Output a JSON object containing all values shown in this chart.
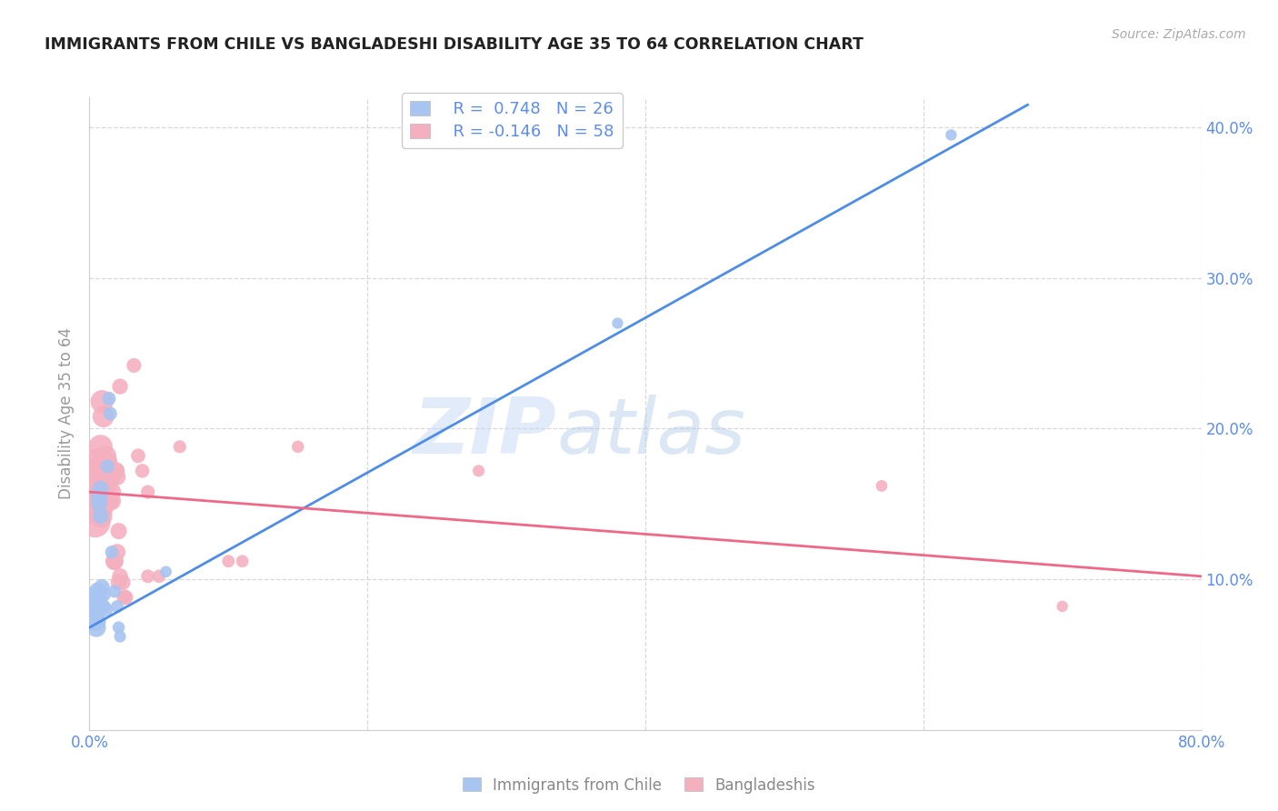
{
  "title": "IMMIGRANTS FROM CHILE VS BANGLADESHI DISABILITY AGE 35 TO 64 CORRELATION CHART",
  "source": "Source: ZipAtlas.com",
  "ylabel": "Disability Age 35 to 64",
  "xlim": [
    0.0,
    0.8
  ],
  "ylim": [
    0.0,
    0.42
  ],
  "blue_color": "#a8c4f0",
  "pink_color": "#f5b0c0",
  "blue_line_color": "#4d8de8",
  "pink_line_color": "#f06888",
  "watermark_zip": "ZIP",
  "watermark_atlas": "atlas",
  "legend_r_blue": "R =  0.748",
  "legend_n_blue": "N = 26",
  "legend_r_pink": "R = -0.146",
  "legend_n_pink": "N = 58",
  "legend_label_blue": "Immigrants from Chile",
  "legend_label_pink": "Bangladeshis",
  "blue_points": [
    [
      0.002,
      0.085
    ],
    [
      0.003,
      0.088
    ],
    [
      0.004,
      0.075
    ],
    [
      0.005,
      0.072
    ],
    [
      0.005,
      0.068
    ],
    [
      0.006,
      0.092
    ],
    [
      0.006,
      0.088
    ],
    [
      0.007,
      0.155
    ],
    [
      0.007,
      0.15
    ],
    [
      0.008,
      0.16
    ],
    [
      0.008,
      0.142
    ],
    [
      0.009,
      0.095
    ],
    [
      0.01,
      0.09
    ],
    [
      0.01,
      0.082
    ],
    [
      0.012,
      0.08
    ],
    [
      0.013,
      0.175
    ],
    [
      0.014,
      0.22
    ],
    [
      0.015,
      0.21
    ],
    [
      0.016,
      0.118
    ],
    [
      0.018,
      0.092
    ],
    [
      0.02,
      0.082
    ],
    [
      0.021,
      0.068
    ],
    [
      0.022,
      0.062
    ],
    [
      0.055,
      0.105
    ],
    [
      0.38,
      0.27
    ],
    [
      0.62,
      0.395
    ]
  ],
  "pink_points": [
    [
      0.003,
      0.148
    ],
    [
      0.004,
      0.138
    ],
    [
      0.005,
      0.162
    ],
    [
      0.005,
      0.152
    ],
    [
      0.005,
      0.172
    ],
    [
      0.006,
      0.158
    ],
    [
      0.006,
      0.178
    ],
    [
      0.007,
      0.168
    ],
    [
      0.007,
      0.152
    ],
    [
      0.007,
      0.162
    ],
    [
      0.008,
      0.168
    ],
    [
      0.008,
      0.188
    ],
    [
      0.008,
      0.142
    ],
    [
      0.009,
      0.148
    ],
    [
      0.009,
      0.218
    ],
    [
      0.009,
      0.172
    ],
    [
      0.01,
      0.162
    ],
    [
      0.01,
      0.178
    ],
    [
      0.01,
      0.208
    ],
    [
      0.011,
      0.162
    ],
    [
      0.011,
      0.158
    ],
    [
      0.012,
      0.182
    ],
    [
      0.012,
      0.178
    ],
    [
      0.013,
      0.178
    ],
    [
      0.013,
      0.162
    ],
    [
      0.014,
      0.172
    ],
    [
      0.014,
      0.152
    ],
    [
      0.015,
      0.168
    ],
    [
      0.015,
      0.168
    ],
    [
      0.016,
      0.158
    ],
    [
      0.016,
      0.152
    ],
    [
      0.017,
      0.172
    ],
    [
      0.018,
      0.112
    ],
    [
      0.018,
      0.112
    ],
    [
      0.019,
      0.172
    ],
    [
      0.019,
      0.172
    ],
    [
      0.02,
      0.168
    ],
    [
      0.02,
      0.118
    ],
    [
      0.021,
      0.132
    ],
    [
      0.021,
      0.098
    ],
    [
      0.022,
      0.102
    ],
    [
      0.022,
      0.228
    ],
    [
      0.024,
      0.098
    ],
    [
      0.025,
      0.088
    ],
    [
      0.026,
      0.088
    ],
    [
      0.032,
      0.242
    ],
    [
      0.035,
      0.182
    ],
    [
      0.038,
      0.172
    ],
    [
      0.042,
      0.158
    ],
    [
      0.042,
      0.102
    ],
    [
      0.05,
      0.102
    ],
    [
      0.065,
      0.188
    ],
    [
      0.1,
      0.112
    ],
    [
      0.11,
      0.112
    ],
    [
      0.15,
      0.188
    ],
    [
      0.28,
      0.172
    ],
    [
      0.57,
      0.162
    ],
    [
      0.7,
      0.082
    ]
  ],
  "blue_sizes": [
    300,
    250,
    250,
    230,
    230,
    200,
    200,
    180,
    170,
    170,
    160,
    150,
    140,
    130,
    120,
    120,
    120,
    115,
    110,
    105,
    100,
    95,
    90,
    85,
    80,
    80
  ],
  "pink_sizes": [
    700,
    600,
    500,
    480,
    460,
    440,
    420,
    400,
    390,
    380,
    370,
    360,
    350,
    340,
    330,
    320,
    310,
    300,
    290,
    280,
    270,
    260,
    255,
    250,
    245,
    240,
    235,
    230,
    225,
    220,
    215,
    210,
    200,
    195,
    190,
    185,
    180,
    175,
    170,
    165,
    160,
    155,
    150,
    145,
    140,
    135,
    130,
    125,
    120,
    115,
    110,
    105,
    100,
    98,
    95,
    90,
    85,
    80
  ],
  "blue_line_x": [
    0.0,
    0.675
  ],
  "blue_line_y": [
    0.068,
    0.415
  ],
  "pink_line_x": [
    0.0,
    0.8
  ],
  "pink_line_y": [
    0.158,
    0.102
  ],
  "grid_color": "#d8d8d8",
  "bg_color": "#ffffff",
  "title_color": "#222222",
  "tick_color": "#5b8dee",
  "right_tick_color": "#5b8dee"
}
